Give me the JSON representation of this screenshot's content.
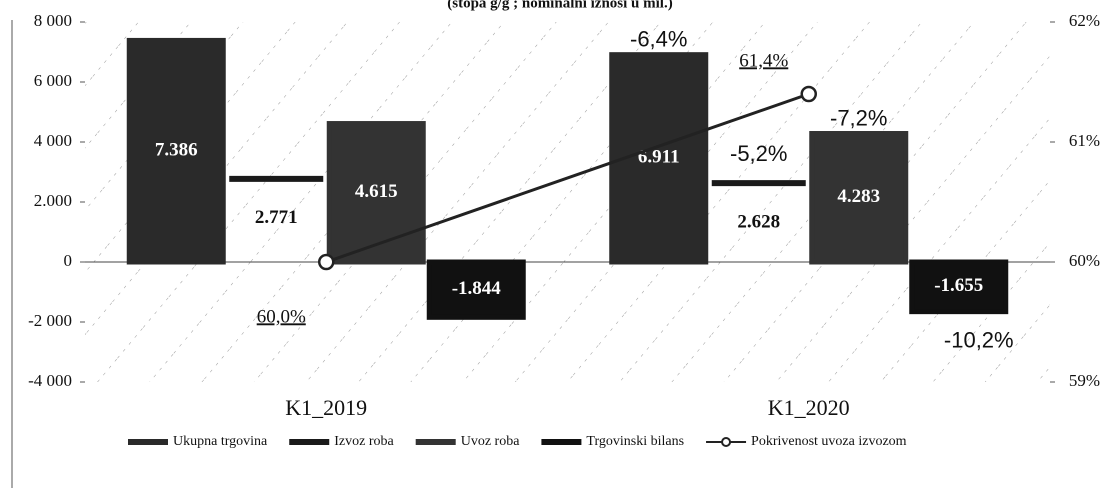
{
  "chart_data": {
    "type": "bar",
    "title": "(stopa g/g ; nominalni iznosi u mil.)",
    "categories": [
      "K1_2019",
      "K1_2020"
    ],
    "series": [
      {
        "name": "Ukupna trgovina",
        "color": "#2a2a2a",
        "values": [
          7386,
          6911
        ],
        "value_labels": [
          "7.386",
          "6.911"
        ]
      },
      {
        "name": "Izvoz roba",
        "color": "#1a1a1a",
        "values": [
          2771,
          2628
        ],
        "value_labels": [
          "2.771",
          "2.628"
        ]
      },
      {
        "name": "Uvoz roba",
        "color": "#333333",
        "values": [
          4615,
          4283
        ],
        "value_labels": [
          "4.615",
          "4.283"
        ]
      },
      {
        "name": "Trgovinski bilans",
        "color": "#111111",
        "values": [
          -1844,
          -1655
        ],
        "value_labels": [
          "-1.844",
          "-1.655"
        ]
      },
      {
        "name": "Pokrivenost uvoza izvozom",
        "type": "line",
        "axis": "y2",
        "color": "#222222",
        "values": [
          60.0,
          61.4
        ],
        "value_labels": [
          "60,0%",
          "61,4%"
        ]
      }
    ],
    "annotations": [
      "-6,4%",
      "-5,2%",
      "-7,2%",
      "-10,2%"
    ],
    "ylim": [
      -4000,
      8000
    ],
    "yticks": [
      {
        "value": -4000,
        "label": "-4 000"
      },
      {
        "value": -2000,
        "label": "-2 000"
      },
      0,
      {
        "value": 2000,
        "label": "2.000"
      },
      {
        "value": 4000,
        "label": "4 000"
      },
      {
        "value": 6000,
        "label": "6 000"
      },
      {
        "value": 8000,
        "label": "8 000"
      }
    ],
    "y2lim": [
      59,
      62
    ],
    "y2ticks": [
      {
        "value": 59,
        "label": "59%"
      },
      {
        "value": 60,
        "label": "60%"
      },
      {
        "value": 61,
        "label": "61%"
      },
      {
        "value": 62,
        "label": "62%"
      }
    ]
  }
}
